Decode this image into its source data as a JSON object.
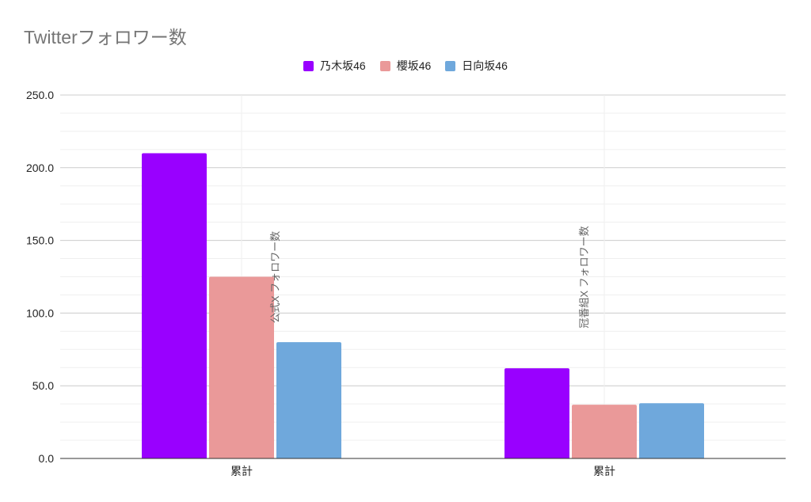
{
  "chart_data": {
    "type": "bar",
    "title": "Twitterフォロワー数",
    "categories": [
      "累計",
      "累計"
    ],
    "series": [
      {
        "name": "乃木坂46",
        "color": "#9900ff",
        "values": [
          210,
          62
        ]
      },
      {
        "name": "櫻坂46",
        "color": "#ea9999",
        "values": [
          125,
          37
        ]
      },
      {
        "name": "日向坂46",
        "color": "#6fa8dc",
        "values": [
          80,
          38
        ]
      }
    ],
    "ylim": [
      0,
      250
    ],
    "yticks": [
      "0.0",
      "50.0",
      "100.0",
      "150.0",
      "200.0",
      "250.0"
    ],
    "grid": true,
    "legend_position": "top",
    "annotations": [
      "公式X フォロワー数",
      "冠番組X フォロワー数"
    ]
  }
}
